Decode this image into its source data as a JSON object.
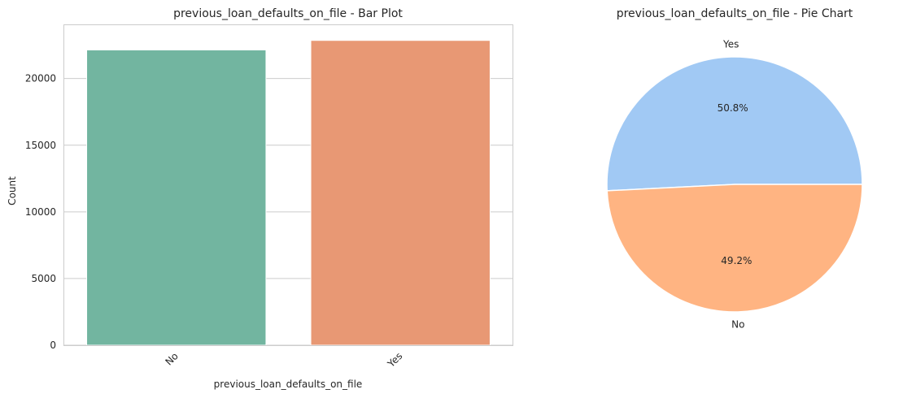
{
  "chart_data": [
    {
      "type": "bar",
      "title": "previous_loan_defaults_on_file - Bar Plot",
      "xlabel": "previous_loan_defaults_on_file",
      "ylabel": "Count",
      "categories": [
        "No",
        "Yes"
      ],
      "values": [
        22142,
        22858
      ],
      "colors": [
        "#72b5a0",
        "#e89874"
      ],
      "ylim": [
        0,
        24000
      ],
      "yticks": [
        0,
        5000,
        10000,
        15000,
        20000
      ],
      "grid": true
    },
    {
      "type": "pie",
      "title": "previous_loan_defaults_on_file - Pie Chart",
      "labels": [
        "Yes",
        "No"
      ],
      "values": [
        50.8,
        49.2
      ],
      "pct_labels": [
        "50.8%",
        "49.2%"
      ],
      "colors": [
        "#a1c9f4",
        "#ffb482"
      ]
    }
  ]
}
